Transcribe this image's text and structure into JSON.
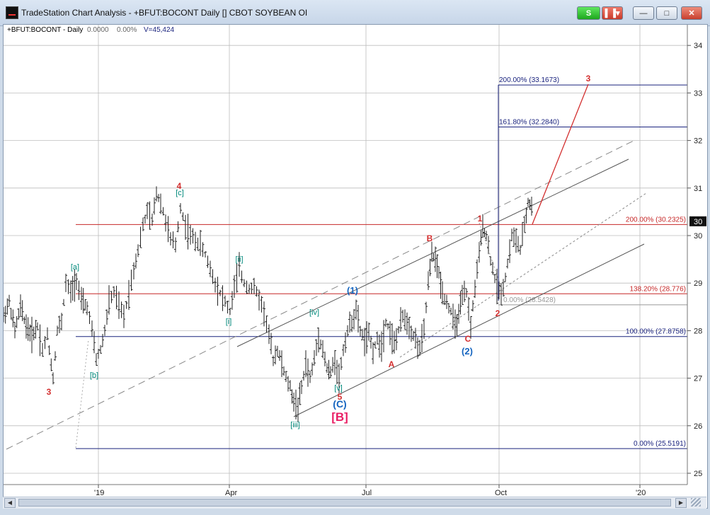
{
  "window": {
    "title": "TradeStation Chart Analysis - +BFUT:BOCONT Daily [] CBOT SOYBEAN OI",
    "buttons": {
      "status": "S",
      "menu": ""
    },
    "controls": {
      "minimize": "—",
      "maximize": "□",
      "close": "✕"
    }
  },
  "chart_data": {
    "type": "line",
    "symbol_info": {
      "symbol": "+BFUT:BOCONT - Daily",
      "change": "0.0000",
      "change_pct": "0.00%",
      "volume": "V=45,424"
    },
    "y_axis": {
      "ticks": [
        25,
        26,
        27,
        28,
        29,
        30,
        31,
        32,
        33,
        34
      ],
      "range": [
        24.8,
        34.5
      ],
      "last_price_label": "30"
    },
    "x_axis": {
      "labels": [
        "'19",
        "Apr",
        "Jul",
        "Oct",
        "'20"
      ]
    },
    "fib_levels": [
      {
        "label": "200.00% (33.1673)",
        "value": 33.1673,
        "color": "#1a237e"
      },
      {
        "label": "161.80% (32.2840)",
        "value": 32.284,
        "color": "#1a237e"
      },
      {
        "label": "200.00% (30.2325)",
        "value": 30.2325,
        "color": "#c62828"
      },
      {
        "label": "138.20% (28.776)",
        "value": 28.776,
        "color": "#c62828"
      },
      {
        "label": "0.00% (28.5428)",
        "value": 28.5428,
        "color": "#999999"
      },
      {
        "label": "100.00% (27.8758)",
        "value": 27.8758,
        "color": "#1a237e"
      },
      {
        "label": "0.00% (25.5191)",
        "value": 25.5191,
        "color": "#1a237e"
      }
    ],
    "wave_labels": [
      {
        "text": "3",
        "color": "#d32f2f"
      },
      {
        "text": "[a]",
        "color": "#00897b"
      },
      {
        "text": "[b]",
        "color": "#00897b"
      },
      {
        "text": "4",
        "color": "#d32f2f"
      },
      {
        "text": "[c]",
        "color": "#00897b"
      },
      {
        "text": "[ii]",
        "color": "#00897b"
      },
      {
        "text": "[i]",
        "color": "#00897b"
      },
      {
        "text": "[iv]",
        "color": "#00897b"
      },
      {
        "text": "[iii]",
        "color": "#00897b"
      },
      {
        "text": "[v]",
        "color": "#00897b"
      },
      {
        "text": "5",
        "color": "#d32f2f"
      },
      {
        "text": "(C)",
        "color": "#1565c0"
      },
      {
        "text": "[B]",
        "color": "#e91e63"
      },
      {
        "text": "(1)",
        "color": "#1565c0"
      },
      {
        "text": "A",
        "color": "#d32f2f"
      },
      {
        "text": "B",
        "color": "#d32f2f"
      },
      {
        "text": "C",
        "color": "#d32f2f"
      },
      {
        "text": "(2)",
        "color": "#1565c0"
      },
      {
        "text": "1",
        "color": "#d32f2f"
      },
      {
        "text": "2",
        "color": "#d32f2f"
      },
      {
        "text": "3",
        "color": "#d32f2f"
      }
    ],
    "price_path": [
      [
        0,
        28.3
      ],
      [
        8,
        28.6
      ],
      [
        16,
        28.0
      ],
      [
        24,
        28.5
      ],
      [
        32,
        28.1
      ],
      [
        40,
        27.9
      ],
      [
        48,
        28.1
      ],
      [
        55,
        27.6
      ],
      [
        62,
        27.9
      ],
      [
        70,
        27.0
      ],
      [
        76,
        28.0
      ],
      [
        82,
        28.2
      ],
      [
        88,
        29.0
      ],
      [
        95,
        28.8
      ],
      [
        103,
        29.1
      ],
      [
        110,
        28.6
      ],
      [
        118,
        28.5
      ],
      [
        125,
        28.0
      ],
      [
        131,
        27.4
      ],
      [
        137,
        27.6
      ],
      [
        143,
        28.0
      ],
      [
        149,
        28.6
      ],
      [
        156,
        28.8
      ],
      [
        163,
        28.5
      ],
      [
        170,
        28.3
      ],
      [
        177,
        28.8
      ],
      [
        184,
        29.3
      ],
      [
        190,
        29.7
      ],
      [
        197,
        30.2
      ],
      [
        203,
        30.5
      ],
      [
        210,
        30.3
      ],
      [
        216,
        30.9
      ],
      [
        222,
        30.7
      ],
      [
        229,
        30.3
      ],
      [
        236,
        29.9
      ],
      [
        243,
        29.8
      ],
      [
        250,
        30.6
      ],
      [
        257,
        30.2
      ],
      [
        264,
        30.0
      ],
      [
        271,
        29.9
      ],
      [
        278,
        29.8
      ],
      [
        285,
        29.6
      ],
      [
        292,
        29.3
      ],
      [
        299,
        29.0
      ],
      [
        306,
        28.8
      ],
      [
        313,
        28.6
      ],
      [
        320,
        28.4
      ],
      [
        326,
        28.9
      ],
      [
        333,
        29.3
      ],
      [
        340,
        29.0
      ],
      [
        347,
        28.9
      ],
      [
        354,
        28.9
      ],
      [
        361,
        28.7
      ],
      [
        368,
        28.4
      ],
      [
        375,
        27.9
      ],
      [
        381,
        27.4
      ],
      [
        387,
        27.6
      ],
      [
        393,
        27.3
      ],
      [
        399,
        27.0
      ],
      [
        405,
        26.8
      ],
      [
        410,
        26.5
      ],
      [
        416,
        26.4
      ],
      [
        421,
        26.8
      ],
      [
        427,
        27.3
      ],
      [
        433,
        27.0
      ],
      [
        439,
        27.4
      ],
      [
        445,
        27.9
      ],
      [
        451,
        27.6
      ],
      [
        457,
        27.2
      ],
      [
        462,
        27.1
      ],
      [
        468,
        27.4
      ],
      [
        474,
        27.0
      ],
      [
        480,
        27.6
      ],
      [
        486,
        28.0
      ],
      [
        492,
        28.2
      ],
      [
        498,
        28.4
      ],
      [
        504,
        28.0
      ],
      [
        510,
        27.8
      ],
      [
        516,
        27.9
      ],
      [
        522,
        27.6
      ],
      [
        528,
        27.8
      ],
      [
        534,
        27.7
      ],
      [
        540,
        28.2
      ],
      [
        546,
        28.0
      ],
      [
        552,
        27.7
      ],
      [
        558,
        28.0
      ],
      [
        564,
        28.3
      ],
      [
        570,
        28.2
      ],
      [
        576,
        28.0
      ],
      [
        582,
        27.8
      ],
      [
        588,
        27.6
      ],
      [
        594,
        28.0
      ],
      [
        600,
        29.0
      ],
      [
        605,
        29.6
      ],
      [
        610,
        29.5
      ],
      [
        615,
        29.2
      ],
      [
        620,
        28.8
      ],
      [
        626,
        28.6
      ],
      [
        632,
        28.4
      ],
      [
        638,
        28.1
      ],
      [
        643,
        28.3
      ],
      [
        648,
        28.7
      ],
      [
        654,
        28.8
      ],
      [
        660,
        28.1
      ],
      [
        666,
        28.9
      ],
      [
        672,
        29.6
      ],
      [
        677,
        30.2
      ],
      [
        682,
        30.0
      ],
      [
        688,
        29.5
      ],
      [
        694,
        29.1
      ],
      [
        700,
        28.8
      ],
      [
        706,
        28.9
      ],
      [
        712,
        29.4
      ],
      [
        718,
        30.0
      ],
      [
        724,
        29.9
      ],
      [
        730,
        29.7
      ],
      [
        736,
        30.2
      ],
      [
        741,
        30.7
      ],
      [
        746,
        30.6
      ],
      [
        750,
        30.3
      ]
    ]
  }
}
